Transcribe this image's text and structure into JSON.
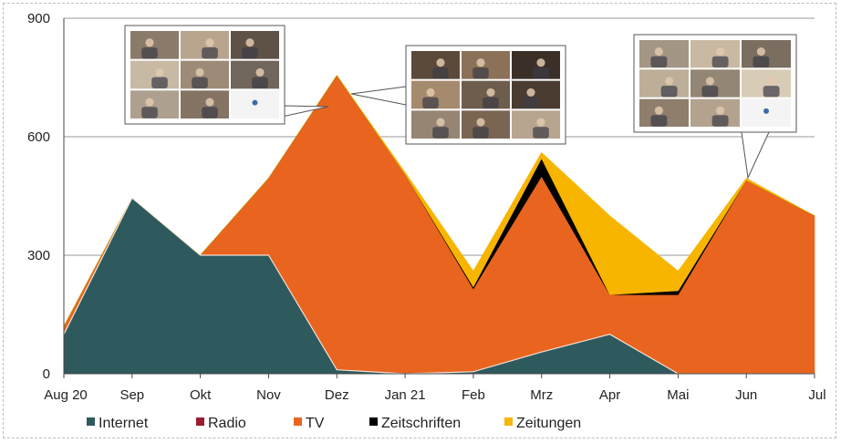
{
  "chart_data": {
    "type": "area",
    "stacked": true,
    "categories": [
      "Aug 20",
      "Sep",
      "Okt",
      "Nov",
      "Dez",
      "Jan 21",
      "Feb",
      "Mrz",
      "Apr",
      "Mai",
      "Jun",
      "Jul"
    ],
    "yticks": [
      0,
      300,
      600,
      900
    ],
    "ylim": [
      0,
      900
    ],
    "grid": true,
    "legend_position": "bottom",
    "series": [
      {
        "name": "Internet",
        "color": "#2e5a5e",
        "values": [
          100,
          445,
          300,
          300,
          10,
          0,
          5,
          55,
          100,
          0,
          0,
          0
        ]
      },
      {
        "name": "Radio",
        "color": "#9e1b32",
        "values": [
          0,
          0,
          0,
          0,
          0,
          0,
          0,
          0,
          0,
          0,
          0,
          0
        ]
      },
      {
        "name": "TV",
        "color": "#e8641f",
        "values": [
          20,
          0,
          0,
          195,
          745,
          505,
          210,
          445,
          100,
          200,
          490,
          400
        ]
      },
      {
        "name": "Zeitschriften",
        "color": "#000000",
        "values": [
          0,
          0,
          0,
          0,
          0,
          0,
          5,
          45,
          0,
          10,
          0,
          0
        ]
      },
      {
        "name": "Zeitungen",
        "color": "#f7b500",
        "values": [
          0,
          0,
          0,
          0,
          0,
          5,
          40,
          15,
          200,
          50,
          5,
          0
        ]
      }
    ]
  },
  "callouts": [
    {
      "name": "photo-collage-left",
      "icon": "video-call-grid"
    },
    {
      "name": "photo-collage-middle",
      "icon": "video-call-grid"
    },
    {
      "name": "photo-collage-right",
      "icon": "video-call-grid"
    }
  ]
}
